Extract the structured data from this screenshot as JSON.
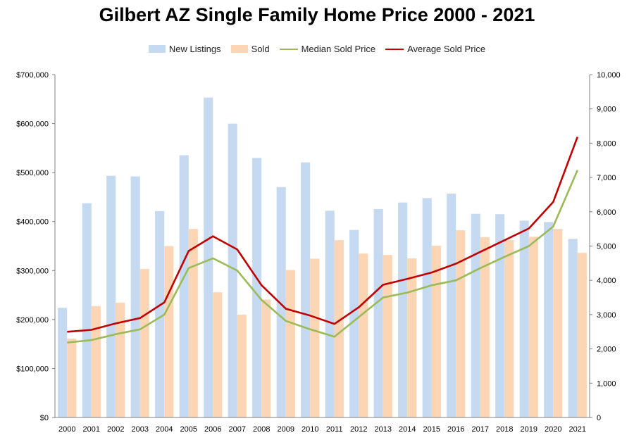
{
  "chart_data": {
    "type": "bar",
    "title": "Gilbert AZ Single Family Home Price 2000 - 2021",
    "categories": [
      "2000",
      "2001",
      "2002",
      "2003",
      "2004",
      "2005",
      "2006",
      "2007",
      "2008",
      "2009",
      "2010",
      "2011",
      "2012",
      "2013",
      "2014",
      "2015",
      "2016",
      "2017",
      "2018",
      "2019",
      "2020",
      "2021"
    ],
    "y_left": {
      "ylim": [
        0,
        700000
      ],
      "ticks": [
        0,
        100000,
        200000,
        300000,
        400000,
        500000,
        600000,
        700000
      ],
      "tick_labels": [
        "$0",
        "$100,000",
        "$200,000",
        "$300,000",
        "$400,000",
        "$500,000",
        "$600,000",
        "$700,000"
      ]
    },
    "y_right": {
      "ylim": [
        0,
        10000
      ],
      "ticks": [
        0,
        1000,
        2000,
        3000,
        4000,
        5000,
        6000,
        7000,
        8000,
        9000,
        10000
      ],
      "tick_labels": [
        "0",
        "1,000",
        "2,000",
        "3,000",
        "4,000",
        "5,000",
        "6,000",
        "7,000",
        "8,000",
        "9,000",
        "10,000"
      ]
    },
    "grid": false,
    "legend_position": "top",
    "series": [
      {
        "name": "New Listings",
        "type": "bar",
        "axis": "right",
        "color": "#c5d9f1",
        "values": [
          3200,
          6250,
          7050,
          7030,
          6020,
          7650,
          9330,
          8570,
          7570,
          6720,
          7440,
          6030,
          5470,
          6080,
          6270,
          6400,
          6530,
          5940,
          5930,
          5740,
          5700,
          5210
        ]
      },
      {
        "name": "Sold",
        "type": "bar",
        "axis": "right",
        "color": "#fcd5b5",
        "values": [
          2300,
          3250,
          3350,
          4330,
          5000,
          5500,
          3650,
          3000,
          3440,
          4300,
          4630,
          5170,
          4780,
          4740,
          4640,
          5010,
          5460,
          5260,
          5170,
          5270,
          5500,
          4800
        ]
      },
      {
        "name": "Median Sold Price",
        "type": "line",
        "axis": "left",
        "color": "#9bbb59",
        "values": [
          153000,
          158000,
          170000,
          180000,
          210000,
          305000,
          325000,
          300000,
          240000,
          197000,
          180000,
          165000,
          205000,
          245000,
          255000,
          270000,
          280000,
          305000,
          328000,
          350000,
          390000,
          505000
        ]
      },
      {
        "name": "Average Sold Price",
        "type": "line",
        "axis": "left",
        "color": "#c00000",
        "values": [
          175000,
          179000,
          192000,
          203000,
          235000,
          340000,
          370000,
          343000,
          270000,
          222000,
          208000,
          191000,
          225000,
          271000,
          283000,
          296000,
          314000,
          338000,
          362000,
          386000,
          440000,
          573000
        ]
      }
    ]
  }
}
